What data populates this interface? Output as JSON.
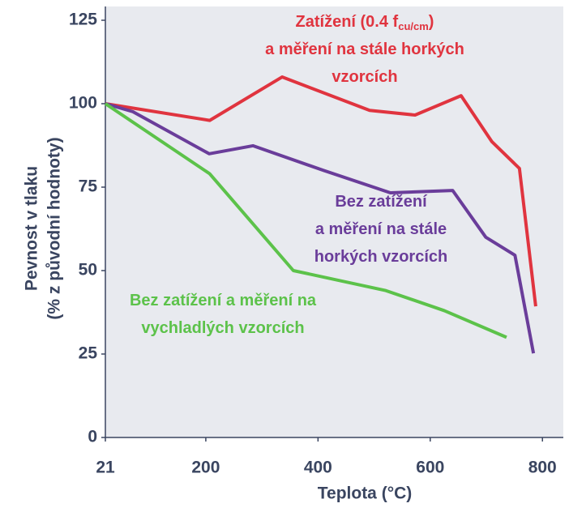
{
  "chart_data": {
    "type": "line",
    "xlabel": "Teplota   (°C)",
    "ylabel": [
      "Pevnost v tlaku",
      "(% z původní hodnoty)"
    ],
    "xlim": [
      21,
      830
    ],
    "ylim": [
      0,
      125
    ],
    "xticks": [
      21,
      200,
      400,
      600,
      800
    ],
    "yticks": [
      0,
      25,
      50,
      75,
      100,
      125
    ],
    "series": [
      {
        "color": "#e0343f",
        "x": [
          21,
          207,
          336,
          492,
          573,
          655,
          710,
          759,
          788
        ],
        "values": [
          100,
          95,
          108,
          98,
          96.6,
          102.4,
          88.6,
          80.6,
          39.3
        ]
      },
      {
        "color": "#6a3d9a",
        "x": [
          21,
          70,
          206,
          284,
          410,
          529,
          640,
          699,
          751,
          784
        ],
        "values": [
          100,
          97.6,
          85,
          87.4,
          80,
          73.3,
          74,
          60,
          54.6,
          25.2
        ]
      },
      {
        "color": "#5cc24a",
        "x": [
          21,
          207,
          356,
          521,
          625,
          736
        ],
        "values": [
          100,
          79,
          50,
          44,
          38,
          30
        ]
      }
    ],
    "annotations": [
      {
        "color": "#e0343f",
        "lines": [
          [
            "Zatížení (0.4 f",
            {
              "sub": "cu/cm"
            },
            ")"
          ],
          [
            "a měření na stále horkých"
          ],
          [
            "vzorcích"
          ]
        ]
      },
      {
        "color": "#6a3d9a",
        "lines": [
          [
            "Bez zatížení"
          ],
          [
            "a měření na stále"
          ],
          [
            "horkých vzorcích"
          ]
        ]
      },
      {
        "color": "#5cc24a",
        "lines": [
          [
            "Bez zatížení a měření na"
          ],
          [
            "vychladlých vzorcích"
          ]
        ]
      }
    ]
  }
}
